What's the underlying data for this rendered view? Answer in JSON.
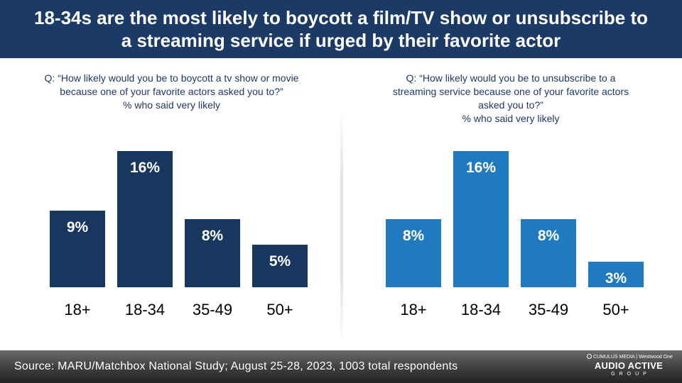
{
  "title": {
    "line1": "18-34s are the most likely to boycott a film/TV show or unsubscribe to",
    "line2": "a streaming service if urged by their favorite actor"
  },
  "left_question": {
    "line1": "Q: “How likely would you be to boycott  a tv show or movie",
    "line2": "because one of your favorite actors asked you to?”",
    "line3": "% who said very likely"
  },
  "right_question": {
    "line1": "Q: “How likely would you be to unsubscribe to a",
    "line2": "streaming service because one of your favorite actors",
    "line3": "asked you to?”",
    "line4": "% who said very likely"
  },
  "colors": {
    "header_bg": "#1b3a66",
    "left_bar": "#17375e",
    "right_bar": "#1f7ac0",
    "question_text": "#1f3864"
  },
  "chart_data": [
    {
      "type": "bar",
      "title": "How likely would you be to boycott a tv show or movie because one of your favorite actors asked you to? — % who said very likely",
      "categories": [
        "18+",
        "18-34",
        "35-49",
        "50+"
      ],
      "values": [
        9,
        16,
        8,
        5
      ],
      "labels": [
        "9%",
        "16%",
        "8%",
        "5%"
      ],
      "xlabel": "",
      "ylabel": "",
      "ylim": [
        0,
        16
      ],
      "grid": false
    },
    {
      "type": "bar",
      "title": "How likely would you be to unsubscribe to a streaming service because one of your favorite actors asked you to? — % who said very likely",
      "categories": [
        "18+",
        "18-34",
        "35-49",
        "50+"
      ],
      "values": [
        8,
        16,
        8,
        3
      ],
      "labels": [
        "8%",
        "16%",
        "8%",
        "3%"
      ],
      "xlabel": "",
      "ylabel": "",
      "ylim": [
        0,
        16
      ],
      "grid": false
    }
  ],
  "footer": {
    "source": "Source:  MARU/Matchbox National Study; August 25-28, 2023, 1003 total respondents",
    "logo_top_left": "CUMULUS MEDIA",
    "logo_top_right": "Westwood One",
    "logo_main": "AUDIO ACTIVE",
    "logo_sub": "GROUP"
  }
}
